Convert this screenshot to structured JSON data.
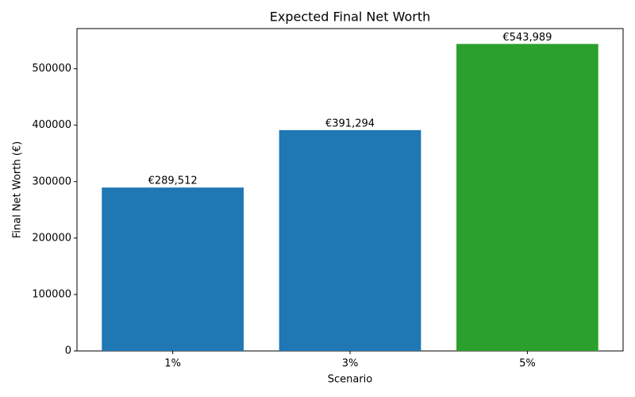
{
  "chart_data": {
    "type": "bar",
    "title": "Expected Final Net Worth",
    "x_label": "Scenario",
    "y_label": "Final Net Worth (€)",
    "categories": [
      "1%",
      "3%",
      "5%"
    ],
    "values": [
      289512,
      391294,
      543989
    ],
    "value_labels": [
      "€289,512",
      "€391,294",
      "€543,989"
    ],
    "colors": [
      "#1f77b4",
      "#1f77b4",
      "#2ca02c"
    ],
    "ylim": [
      0,
      571188
    ],
    "yticks": [
      0,
      100000,
      200000,
      300000,
      400000,
      500000
    ],
    "grid": false
  }
}
